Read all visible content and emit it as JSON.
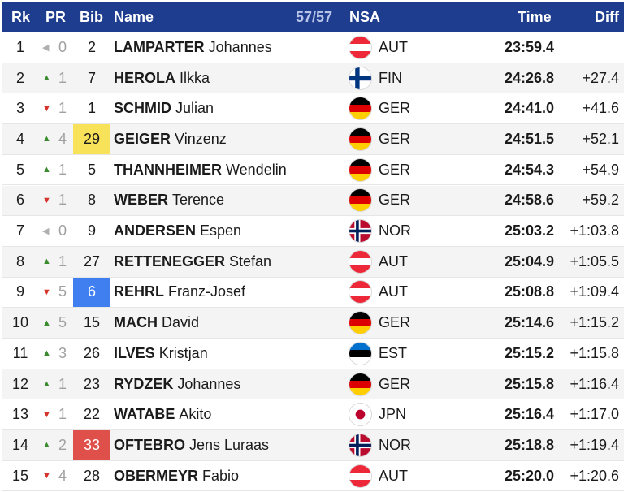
{
  "header": {
    "rank": "Rk",
    "pr": "PR",
    "bib": "Bib",
    "name": "Name",
    "count": "57/57",
    "nsa": "NSA",
    "time": "Time",
    "diff": "Diff"
  },
  "colors": {
    "header_bg": "#1e3d8f",
    "up_arrow": "#3a8a2e",
    "down_arrow": "#d6332b",
    "bib_yellow": "#f7e25a",
    "bib_blue": "#3f7ff0",
    "bib_red": "#e0504a"
  },
  "rows": [
    {
      "rank": "1",
      "pr_dir": "same",
      "pr": "0",
      "bib": "2",
      "bib_style": "",
      "last": "LAMPARTER",
      "first": "Johannes",
      "flag": "AUT",
      "nsa": "AUT",
      "time": "23:59.4",
      "diff": ""
    },
    {
      "rank": "2",
      "pr_dir": "up",
      "pr": "1",
      "bib": "7",
      "bib_style": "",
      "last": "HEROLA",
      "first": "Ilkka",
      "flag": "FIN",
      "nsa": "FIN",
      "time": "24:26.8",
      "diff": "+27.4"
    },
    {
      "rank": "3",
      "pr_dir": "down",
      "pr": "1",
      "bib": "1",
      "bib_style": "",
      "last": "SCHMID",
      "first": "Julian",
      "flag": "GER",
      "nsa": "GER",
      "time": "24:41.0",
      "diff": "+41.6"
    },
    {
      "rank": "4",
      "pr_dir": "up",
      "pr": "4",
      "bib": "29",
      "bib_style": "yellow",
      "last": "GEIGER",
      "first": "Vinzenz",
      "flag": "GER",
      "nsa": "GER",
      "time": "24:51.5",
      "diff": "+52.1"
    },
    {
      "rank": "5",
      "pr_dir": "up",
      "pr": "1",
      "bib": "5",
      "bib_style": "",
      "last": "THANNHEIMER",
      "first": "Wendelin",
      "flag": "GER",
      "nsa": "GER",
      "time": "24:54.3",
      "diff": "+54.9"
    },
    {
      "rank": "6",
      "pr_dir": "down",
      "pr": "1",
      "bib": "8",
      "bib_style": "",
      "last": "WEBER",
      "first": "Terence",
      "flag": "GER",
      "nsa": "GER",
      "time": "24:58.6",
      "diff": "+59.2"
    },
    {
      "rank": "7",
      "pr_dir": "same",
      "pr": "0",
      "bib": "9",
      "bib_style": "",
      "last": "ANDERSEN",
      "first": "Espen",
      "flag": "NOR",
      "nsa": "NOR",
      "time": "25:03.2",
      "diff": "+1:03.8"
    },
    {
      "rank": "8",
      "pr_dir": "up",
      "pr": "1",
      "bib": "27",
      "bib_style": "",
      "last": "RETTENEGGER",
      "first": "Stefan",
      "flag": "AUT",
      "nsa": "AUT",
      "time": "25:04.9",
      "diff": "+1:05.5"
    },
    {
      "rank": "9",
      "pr_dir": "down",
      "pr": "5",
      "bib": "6",
      "bib_style": "blue",
      "last": "REHRL",
      "first": "Franz-Josef",
      "flag": "AUT",
      "nsa": "AUT",
      "time": "25:08.8",
      "diff": "+1:09.4"
    },
    {
      "rank": "10",
      "pr_dir": "up",
      "pr": "5",
      "bib": "15",
      "bib_style": "",
      "last": "MACH",
      "first": "David",
      "flag": "GER",
      "nsa": "GER",
      "time": "25:14.6",
      "diff": "+1:15.2"
    },
    {
      "rank": "11",
      "pr_dir": "up",
      "pr": "3",
      "bib": "26",
      "bib_style": "",
      "last": "ILVES",
      "first": "Kristjan",
      "flag": "EST",
      "nsa": "EST",
      "time": "25:15.2",
      "diff": "+1:15.8"
    },
    {
      "rank": "12",
      "pr_dir": "up",
      "pr": "1",
      "bib": "23",
      "bib_style": "",
      "last": "RYDZEK",
      "first": "Johannes",
      "flag": "GER",
      "nsa": "GER",
      "time": "25:15.8",
      "diff": "+1:16.4"
    },
    {
      "rank": "13",
      "pr_dir": "down",
      "pr": "1",
      "bib": "22",
      "bib_style": "",
      "last": "WATABE",
      "first": "Akito",
      "flag": "JPN",
      "nsa": "JPN",
      "time": "25:16.4",
      "diff": "+1:17.0"
    },
    {
      "rank": "14",
      "pr_dir": "up",
      "pr": "2",
      "bib": "33",
      "bib_style": "red",
      "last": "OFTEBRO",
      "first": "Jens Luraas",
      "flag": "NOR",
      "nsa": "NOR",
      "time": "25:18.8",
      "diff": "+1:19.4"
    },
    {
      "rank": "15",
      "pr_dir": "down",
      "pr": "4",
      "bib": "28",
      "bib_style": "",
      "last": "OBERMEYR",
      "first": "Fabio",
      "flag": "AUT",
      "nsa": "AUT",
      "time": "25:20.0",
      "diff": "+1:20.6"
    }
  ]
}
